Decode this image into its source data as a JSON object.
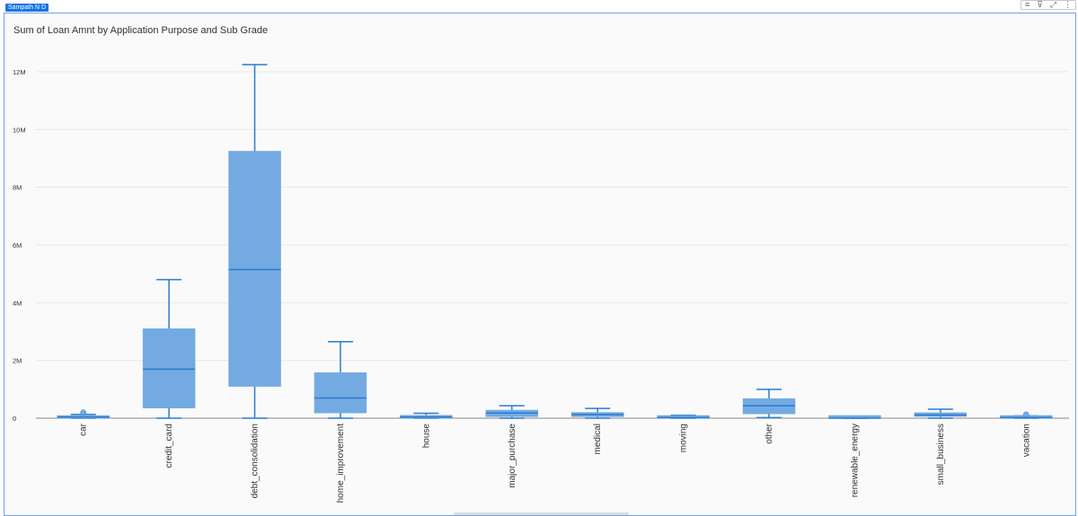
{
  "author": "Sampath N D",
  "toolbar": {
    "icons": [
      "drag-handle-icon",
      "filter-icon",
      "focus-mode-icon",
      "more-options-icon"
    ],
    "glyphs": [
      "≡",
      "⊽",
      "⤢",
      "⋮"
    ]
  },
  "colors": {
    "box_fill": "#74aae2",
    "stroke": "#2b7bd0",
    "grid": "#e8e8e8",
    "axis": "#8a8a8a",
    "text": "#333333"
  },
  "chart_data": {
    "type": "box",
    "title": "Sum of Loan Amnt by Application Purpose and Sub Grade",
    "xlabel": "",
    "ylabel": "",
    "ylim": [
      0,
      13000000
    ],
    "yticks": [
      0,
      2000000,
      4000000,
      6000000,
      8000000,
      10000000,
      12000000
    ],
    "ytick_labels": [
      "0",
      "2M",
      "4M",
      "6M",
      "8M",
      "10M",
      "12M"
    ],
    "grid": true,
    "categories": [
      "car",
      "credit_card",
      "debt_consolidation",
      "home_improvement",
      "house",
      "major_purchase",
      "medical",
      "moving",
      "other",
      "renewable_energy",
      "small_business",
      "vacation"
    ],
    "boxes": [
      {
        "min": 0,
        "q1": 0,
        "median": 40000,
        "q3": 80000,
        "max": 130000,
        "outliers": [
          200000
        ]
      },
      {
        "min": 0,
        "q1": 350000,
        "median": 1700000,
        "q3": 3100000,
        "max": 4800000,
        "outliers": []
      },
      {
        "min": 0,
        "q1": 1100000,
        "median": 5150000,
        "q3": 9250000,
        "max": 12250000,
        "outliers": []
      },
      {
        "min": 0,
        "q1": 180000,
        "median": 700000,
        "q3": 1580000,
        "max": 2650000,
        "outliers": []
      },
      {
        "min": 0,
        "q1": 0,
        "median": 40000,
        "q3": 100000,
        "max": 170000,
        "outliers": []
      },
      {
        "min": 0,
        "q1": 50000,
        "median": 180000,
        "q3": 280000,
        "max": 430000,
        "outliers": []
      },
      {
        "min": 0,
        "q1": 50000,
        "median": 130000,
        "q3": 200000,
        "max": 340000,
        "outliers": []
      },
      {
        "min": 0,
        "q1": 0,
        "median": 20000,
        "q3": 60000,
        "max": 100000,
        "outliers": []
      },
      {
        "min": 20000,
        "q1": 150000,
        "median": 430000,
        "q3": 680000,
        "max": 1000000,
        "outliers": []
      },
      {
        "min": 0,
        "q1": 0,
        "median": 0,
        "q3": 20000,
        "max": 40000,
        "outliers": []
      },
      {
        "min": 0,
        "q1": 60000,
        "median": 110000,
        "q3": 190000,
        "max": 310000,
        "outliers": []
      },
      {
        "min": 0,
        "q1": 0,
        "median": 20000,
        "q3": 50000,
        "max": 80000,
        "outliers": [
          130000
        ]
      }
    ]
  }
}
